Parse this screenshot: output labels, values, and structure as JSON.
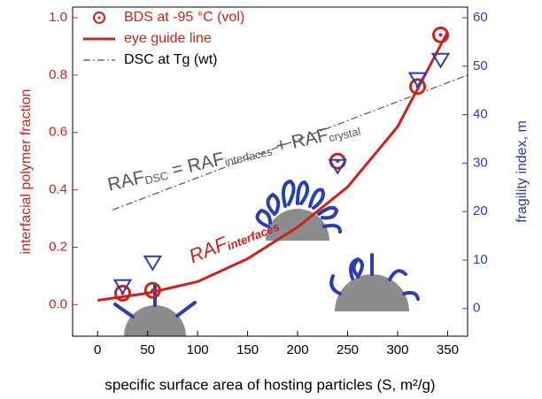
{
  "chart_data": {
    "type": "scatter",
    "xlabel": "specific surface area of hosting particles (S, m²/g)",
    "ylabel": "interfacial polymer fraction",
    "y2label": "fragility index, m",
    "xlim": [
      -25,
      370
    ],
    "ylim": [
      -0.11,
      1.037
    ],
    "y2lim": [
      -5.7,
      62.2
    ],
    "xticks": [
      0,
      50,
      100,
      150,
      200,
      250,
      300,
      350
    ],
    "yticks": [
      {
        "value": 0,
        "label": "0.0"
      },
      0.2,
      0.4,
      0.6,
      0.8,
      {
        "value": 1,
        "label": "1.0"
      }
    ],
    "y2ticks": [
      0,
      10,
      20,
      30,
      40,
      50,
      60
    ],
    "series": [
      {
        "name": "BDS at -95 °C (vol)",
        "color": "#c8241c",
        "marker": "circle-dot",
        "x": [
          25,
          55,
          240,
          320,
          343
        ],
        "values": [
          0.04,
          0.05,
          0.5,
          0.76,
          0.94
        ]
      },
      {
        "name": "eye guide line",
        "color": "#c8241c",
        "marker": "line",
        "x": [
          0,
          50,
          100,
          150,
          200,
          250,
          300,
          350
        ],
        "values": [
          0.015,
          0.04,
          0.08,
          0.16,
          0.27,
          0.41,
          0.62,
          0.95
        ]
      },
      {
        "name": "DSC at Tg (wt)",
        "color": "#555555",
        "marker": "dashdot",
        "x": [
          15,
          370
        ],
        "values": [
          0.33,
          0.8
        ]
      },
      {
        "color": "#2a3eb0",
        "marker": "triangle",
        "axis": "y2",
        "x": [
          25,
          55,
          240,
          320,
          343
        ],
        "values": [
          4.6,
          9.5,
          29.4,
          47.3,
          51.3
        ]
      }
    ],
    "annotations": [
      {
        "color": "#555555",
        "parts": [
          {
            "text": "RAF"
          },
          {
            "text": "DSC",
            "sub": true
          },
          {
            "text": " = RAF"
          },
          {
            "text": "interfaces",
            "sub": true
          },
          {
            "text": " + RAF"
          },
          {
            "text": "crystal",
            "sub": true
          }
        ]
      },
      {
        "color": "#c8241c",
        "parts": [
          {
            "text": "RAF"
          },
          {
            "text": "interfaces",
            "sub": true
          }
        ]
      }
    ]
  }
}
